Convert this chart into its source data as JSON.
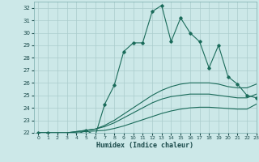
{
  "title": "",
  "xlabel": "Humidex (Indice chaleur)",
  "xlim": [
    -0.5,
    23
  ],
  "ylim": [
    22,
    32.5
  ],
  "yticks": [
    22,
    23,
    24,
    25,
    26,
    27,
    28,
    29,
    30,
    31,
    32
  ],
  "xticks": [
    0,
    1,
    2,
    3,
    4,
    5,
    6,
    7,
    8,
    9,
    10,
    11,
    12,
    13,
    14,
    15,
    16,
    17,
    18,
    19,
    20,
    21,
    22,
    23
  ],
  "bg_color": "#cce8e8",
  "grid_color": "#aacccc",
  "line_color": "#1a6b5a",
  "line1_x": [
    0,
    1,
    2,
    3,
    4,
    5,
    6,
    7,
    8,
    9,
    10,
    11,
    12,
    13,
    14,
    15,
    16,
    17,
    18,
    19,
    20,
    21,
    22,
    23
  ],
  "line1_y": [
    22.0,
    22.0,
    21.9,
    21.85,
    21.85,
    22.2,
    21.8,
    24.3,
    25.8,
    28.5,
    29.2,
    29.2,
    31.7,
    32.2,
    29.3,
    31.2,
    30.0,
    29.3,
    27.2,
    29.0,
    26.5,
    25.9,
    25.0,
    24.8
  ],
  "line2_x": [
    0,
    1,
    2,
    3,
    4,
    5,
    6,
    7,
    8,
    9,
    10,
    11,
    12,
    13,
    14,
    15,
    16,
    17,
    18,
    19,
    20,
    21,
    22,
    23
  ],
  "line2_y": [
    22.0,
    22.0,
    22.0,
    22.0,
    22.05,
    22.1,
    22.15,
    22.2,
    22.35,
    22.55,
    22.8,
    23.05,
    23.3,
    23.55,
    23.75,
    23.9,
    24.0,
    24.05,
    24.05,
    24.0,
    23.95,
    23.9,
    23.9,
    24.3
  ],
  "line3_x": [
    0,
    1,
    2,
    3,
    4,
    5,
    6,
    7,
    8,
    9,
    10,
    11,
    12,
    13,
    14,
    15,
    16,
    17,
    18,
    19,
    20,
    21,
    22,
    23
  ],
  "line3_y": [
    22.0,
    22.0,
    22.0,
    22.0,
    22.1,
    22.2,
    22.3,
    22.5,
    22.8,
    23.2,
    23.6,
    24.0,
    24.4,
    24.7,
    24.9,
    25.0,
    25.1,
    25.1,
    25.1,
    25.0,
    24.9,
    24.8,
    24.8,
    25.1
  ],
  "line4_x": [
    0,
    1,
    2,
    3,
    4,
    5,
    6,
    7,
    8,
    9,
    10,
    11,
    12,
    13,
    14,
    15,
    16,
    17,
    18,
    19,
    20,
    21,
    22,
    23
  ],
  "line4_y": [
    22.0,
    22.0,
    22.0,
    22.0,
    22.1,
    22.2,
    22.3,
    22.6,
    23.0,
    23.5,
    24.0,
    24.5,
    25.0,
    25.4,
    25.7,
    25.9,
    26.0,
    26.0,
    26.0,
    25.9,
    25.7,
    25.6,
    25.6,
    25.9
  ]
}
